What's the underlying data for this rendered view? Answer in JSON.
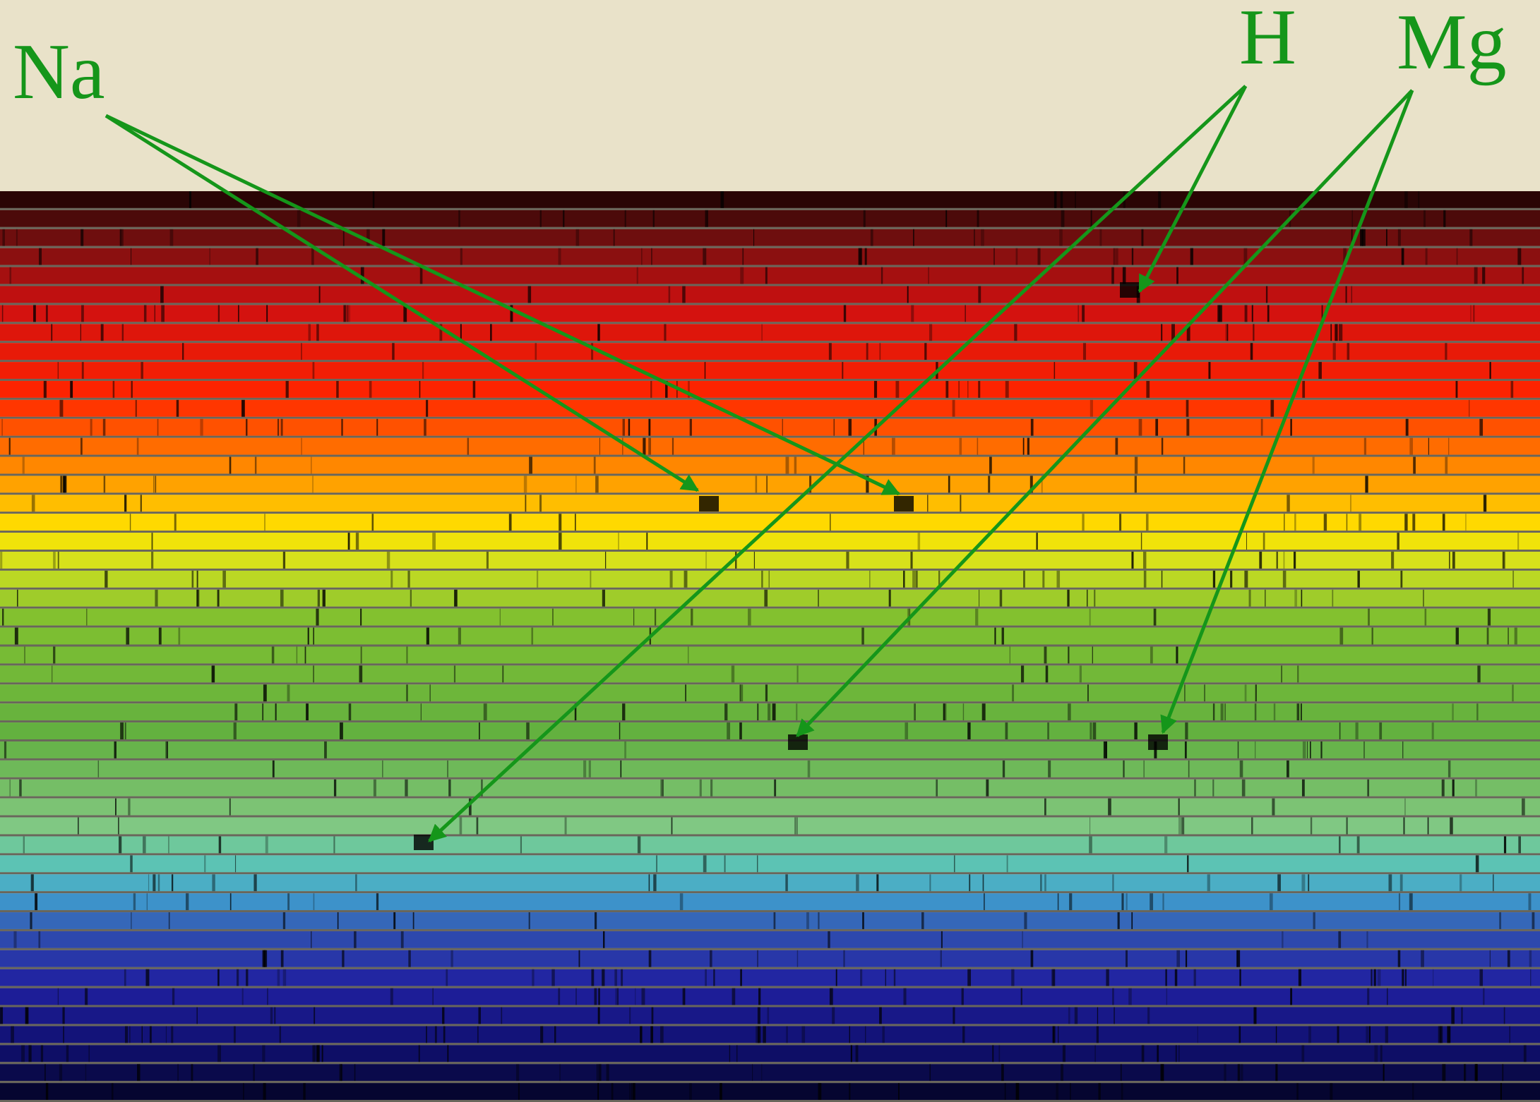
{
  "annotations": [
    {
      "label": "Na"
    },
    {
      "label": "H"
    },
    {
      "label": "Mg"
    }
  ]
}
